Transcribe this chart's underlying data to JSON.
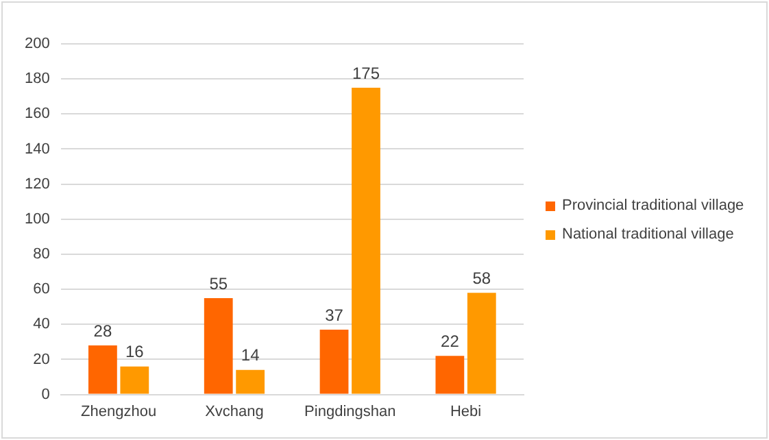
{
  "chart_data": {
    "type": "bar",
    "categories": [
      "Zhengzhou",
      "Xvchang",
      "Pingdingshan",
      "Hebi"
    ],
    "series": [
      {
        "name": "Provincial traditional village",
        "color": "#ff6600",
        "values": [
          28,
          55,
          37,
          22
        ]
      },
      {
        "name": "National traditional village",
        "color": "#ff9900",
        "values": [
          16,
          14,
          175,
          58
        ]
      }
    ],
    "ylim": [
      0,
      200
    ],
    "yticks": [
      0,
      20,
      40,
      60,
      80,
      100,
      120,
      140,
      160,
      180,
      200
    ],
    "grid": "y",
    "legend": "right",
    "data_labels": true
  }
}
